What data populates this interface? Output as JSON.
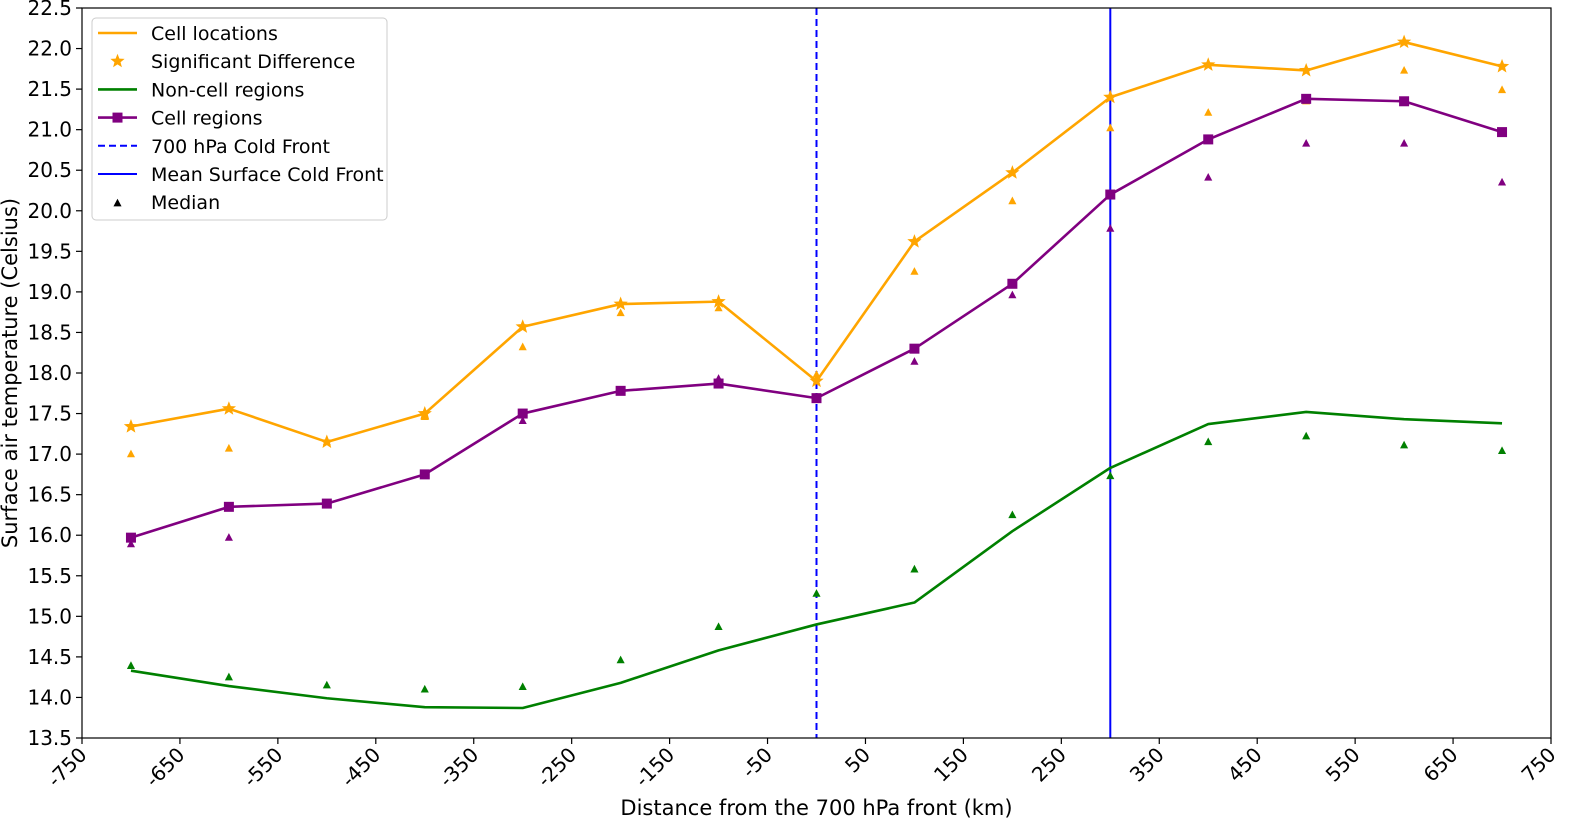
{
  "chart_data": {
    "type": "line",
    "xlabel": "Distance from the 700 hPa front (km)",
    "ylabel": "Surface air temperature (Celsius)",
    "xlim": [
      -750,
      750
    ],
    "ylim": [
      13.5,
      22.5
    ],
    "xticks": [
      -750,
      -650,
      -550,
      -450,
      -350,
      -250,
      -150,
      -50,
      50,
      150,
      250,
      350,
      450,
      550,
      650,
      750
    ],
    "yticks": [
      13.5,
      14.0,
      14.5,
      15.0,
      15.5,
      16.0,
      16.5,
      17.0,
      17.5,
      18.0,
      18.5,
      19.0,
      19.5,
      20.0,
      20.5,
      21.0,
      21.5,
      22.0,
      22.5
    ],
    "x": [
      -700,
      -600,
      -500,
      -400,
      -300,
      -200,
      -100,
      0,
      100,
      200,
      300,
      400,
      500,
      600,
      700
    ],
    "legend_position": "upper-left",
    "grid": false,
    "series": [
      {
        "name": "Cell locations",
        "color": "#ffa500",
        "values": [
          17.34,
          17.56,
          17.15,
          17.5,
          18.57,
          18.85,
          18.88,
          17.9,
          19.62,
          20.47,
          21.4,
          21.8,
          21.73,
          22.08,
          21.78
        ]
      },
      {
        "name": "Significant Difference",
        "color": "#ffa500",
        "marker": "star",
        "values": [
          17.34,
          17.56,
          17.15,
          17.5,
          18.57,
          18.85,
          18.88,
          17.9,
          19.62,
          20.47,
          21.4,
          21.8,
          21.73,
          22.08,
          21.78
        ]
      },
      {
        "name": "Non-cell regions",
        "color": "#008000",
        "values": [
          14.33,
          14.14,
          13.99,
          13.88,
          13.87,
          14.18,
          14.58,
          14.9,
          15.17,
          16.05,
          16.83,
          17.37,
          17.52,
          17.43,
          17.38
        ]
      },
      {
        "name": "Cell regions",
        "color": "#800080",
        "marker": "square",
        "values": [
          15.97,
          16.35,
          16.39,
          16.75,
          17.5,
          17.78,
          17.87,
          17.69,
          18.3,
          19.1,
          20.2,
          20.88,
          21.38,
          21.35,
          20.97
        ]
      }
    ],
    "vlines": [
      {
        "name": "700 hPa Cold Front",
        "x": 0,
        "color": "#0000ff",
        "style": "dashed"
      },
      {
        "name": "Mean Surface Cold Front",
        "x": 300,
        "color": "#0000ff",
        "style": "solid"
      }
    ],
    "medians": {
      "name": "Median",
      "legend_color": "#000000",
      "marker": "triangle",
      "cell_locations": {
        "color": "#ffa500",
        "values": [
          17.0,
          17.07,
          17.15,
          17.46,
          18.32,
          18.74,
          18.8,
          17.98,
          19.25,
          20.12,
          21.02,
          21.21,
          21.35,
          21.73,
          21.49
        ]
      },
      "non_cell_regions": {
        "color": "#008000",
        "values": [
          14.39,
          14.25,
          14.15,
          14.1,
          14.13,
          14.46,
          14.87,
          15.28,
          15.58,
          16.25,
          16.73,
          17.15,
          17.22,
          17.11,
          17.04
        ]
      },
      "cell_regions": {
        "color": "#800080",
        "values": [
          15.89,
          15.97,
          16.39,
          16.75,
          17.41,
          17.78,
          17.93,
          17.69,
          18.14,
          18.96,
          19.78,
          20.41,
          20.83,
          20.83,
          20.35
        ]
      }
    }
  }
}
